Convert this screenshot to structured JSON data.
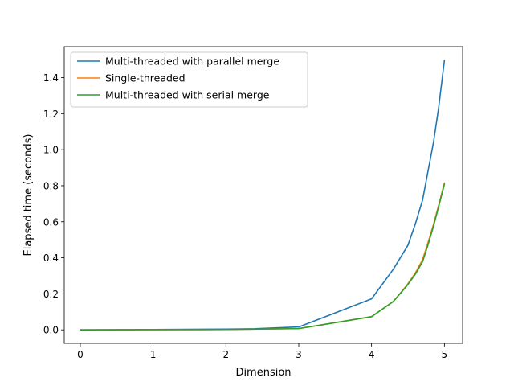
{
  "chart_data": {
    "type": "line",
    "xlabel": "Dimension",
    "ylabel": "Elapsed time (seconds)",
    "xlim": [
      -0.22,
      5.25
    ],
    "ylim": [
      -0.075,
      1.572
    ],
    "x_ticks": [
      0,
      1,
      2,
      3,
      4,
      5
    ],
    "x_tick_labels": [
      "0",
      "1",
      "2",
      "3",
      "4",
      "5"
    ],
    "y_ticks": [
      0.0,
      0.2,
      0.4,
      0.6,
      0.8,
      1.0,
      1.2,
      1.4
    ],
    "y_tick_labels": [
      "0.0",
      "0.2",
      "0.4",
      "0.6",
      "0.8",
      "1.0",
      "1.2",
      "1.4"
    ],
    "grid": false,
    "legend_position": "top-left",
    "series": [
      {
        "name": "Multi-threaded with parallel merge",
        "color": "#1f77b4",
        "x": [
          0,
          1,
          2,
          2.4,
          3,
          4,
          4.3,
          4.5,
          4.6,
          4.7,
          4.77,
          4.85,
          4.92,
          5
        ],
        "y": [
          0.0,
          0.002,
          0.004,
          0.006,
          0.016,
          0.172,
          0.337,
          0.47,
          0.587,
          0.72,
          0.87,
          1.04,
          1.23,
          1.495
        ]
      },
      {
        "name": "Single-threaded",
        "color": "#ff7f0e",
        "x": [
          0,
          1,
          2,
          3,
          4,
          4.3,
          4.48,
          4.6,
          4.7,
          4.77,
          4.85,
          4.92,
          5
        ],
        "y": [
          0.0,
          0.001,
          0.002,
          0.007,
          0.073,
          0.158,
          0.245,
          0.315,
          0.39,
          0.478,
          0.585,
          0.69,
          0.815
        ]
      },
      {
        "name": "Multi-threaded with serial merge",
        "color": "#2ca02c",
        "x": [
          0,
          1,
          2,
          3,
          4,
          4.3,
          4.48,
          4.6,
          4.7,
          4.77,
          4.85,
          4.92,
          5
        ],
        "y": [
          0.0,
          0.001,
          0.002,
          0.007,
          0.073,
          0.158,
          0.242,
          0.308,
          0.378,
          0.465,
          0.575,
          0.682,
          0.808
        ]
      }
    ]
  }
}
